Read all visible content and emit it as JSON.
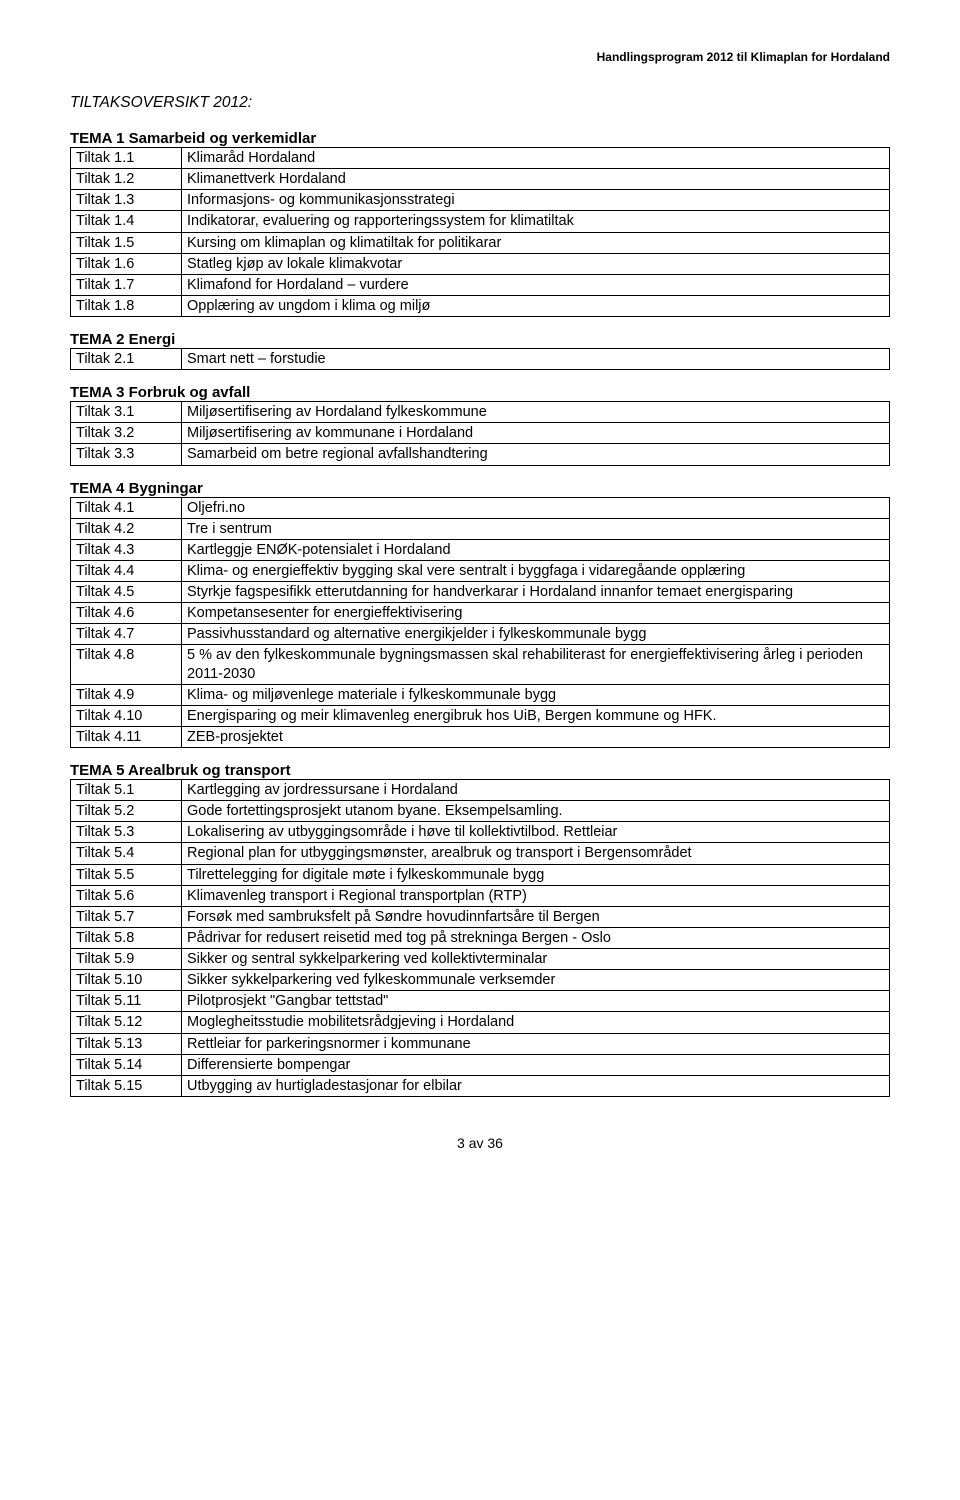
{
  "header": {
    "right_text": "Handlingsprogram 2012 til Klimaplan for Hordaland"
  },
  "page_title": "TILTAKSOVERSIKT 2012:",
  "sections": [
    {
      "title": "TEMA 1 Samarbeid og verkemidlar",
      "rows": [
        {
          "key": "Tiltak 1.1",
          "val": "Klimaråd Hordaland"
        },
        {
          "key": "Tiltak 1.2",
          "val": "Klimanettverk Hordaland"
        },
        {
          "key": "Tiltak 1.3",
          "val": "Informasjons- og kommunikasjonsstrategi"
        },
        {
          "key": "Tiltak 1.4",
          "val": "Indikatorar, evaluering og rapporteringssystem for klimatiltak"
        },
        {
          "key": "Tiltak 1.5",
          "val": "Kursing om klimaplan og klimatiltak for politikarar"
        },
        {
          "key": "Tiltak 1.6",
          "val": "Statleg kjøp av lokale klimakvotar"
        },
        {
          "key": "Tiltak 1.7",
          "val": "Klimafond for Hordaland – vurdere"
        },
        {
          "key": "Tiltak 1.8",
          "val": "Opplæring av ungdom i klima og miljø"
        }
      ]
    },
    {
      "title": "TEMA 2 Energi",
      "rows": [
        {
          "key": "Tiltak 2.1",
          "val": "Smart nett – forstudie"
        }
      ]
    },
    {
      "title": "TEMA 3 Forbruk og avfall",
      "rows": [
        {
          "key": "Tiltak 3.1",
          "val": "Miljøsertifisering av Hordaland fylkeskommune"
        },
        {
          "key": "Tiltak 3.2",
          "val": "Miljøsertifisering av kommunane i Hordaland"
        },
        {
          "key": "Tiltak 3.3",
          "val": "Samarbeid om betre regional avfallshandtering"
        }
      ]
    },
    {
      "title": "TEMA 4 Bygningar",
      "rows": [
        {
          "key": "Tiltak 4.1",
          "val": "Oljefri.no"
        },
        {
          "key": "Tiltak 4.2",
          "val": "Tre i sentrum"
        },
        {
          "key": "Tiltak 4.3",
          "val": "Kartleggje ENØK-potensialet i Hordaland"
        },
        {
          "key": "Tiltak 4.4",
          "val": "Klima- og energieffektiv bygging skal vere sentralt i byggfaga i vidaregåande opplæring"
        },
        {
          "key": "Tiltak 4.5",
          "val": "Styrkje fagspesifikk etterutdanning for handverkarar i Hordaland innanfor temaet energisparing"
        },
        {
          "key": "Tiltak 4.6",
          "val": "Kompetansesenter for energieffektivisering"
        },
        {
          "key": "Tiltak 4.7",
          "val": "Passivhusstandard og alternative energikjelder i fylkeskommunale bygg"
        },
        {
          "key": "Tiltak 4.8",
          "val": "5 % av den fylkeskommunale bygningsmassen skal rehabiliterast for energieffektivisering årleg i perioden 2011-2030"
        },
        {
          "key": "Tiltak 4.9",
          "val": "Klima- og miljøvenlege materiale i fylkeskommunale bygg"
        },
        {
          "key": "Tiltak 4.10",
          "val": "Energisparing og meir klimavenleg energibruk hos UiB, Bergen kommune og HFK."
        },
        {
          "key": "Tiltak 4.11",
          "val": "ZEB-prosjektet"
        }
      ]
    },
    {
      "title": "TEMA 5 Arealbruk og transport",
      "rows": [
        {
          "key": "Tiltak 5.1",
          "val": "Kartlegging av jordressursane i Hordaland"
        },
        {
          "key": "Tiltak 5.2",
          "val": "Gode fortettingsprosjekt utanom byane. Eksempelsamling."
        },
        {
          "key": "Tiltak 5.3",
          "val": "Lokalisering av utbyggingsområde i høve til kollektivtilbod. Rettleiar"
        },
        {
          "key": "Tiltak 5.4",
          "val": "Regional plan for utbyggingsmønster, arealbruk og transport i Bergensområdet"
        },
        {
          "key": "Tiltak 5.5",
          "val": "Tilrettelegging for digitale møte i fylkeskommunale bygg"
        },
        {
          "key": "Tiltak 5.6",
          "val": "Klimavenleg transport i Regional transportplan (RTP)"
        },
        {
          "key": "Tiltak 5.7",
          "val": "Forsøk med sambruksfelt på Søndre hovudinnfartsåre til Bergen"
        },
        {
          "key": "Tiltak 5.8",
          "val": "Pådrivar for redusert reisetid med tog på strekninga Bergen - Oslo"
        },
        {
          "key": "Tiltak 5.9",
          "val": "Sikker og sentral sykkelparkering ved kollektivterminalar"
        },
        {
          "key": "Tiltak 5.10",
          "val": "Sikker sykkelparkering ved fylkeskommunale verksemder"
        },
        {
          "key": "Tiltak 5.11",
          "val": "Pilotprosjekt \"Gangbar tettstad\""
        },
        {
          "key": "Tiltak 5.12",
          "val": "Moglegheitsstudie mobilitetsrådgjeving i Hordaland"
        },
        {
          "key": "Tiltak 5.13",
          "val": "Rettleiar for parkeringsnormer i kommunane"
        },
        {
          "key": "Tiltak 5.14",
          "val": "Differensierte bompengar"
        },
        {
          "key": "Tiltak 5.15",
          "val": "Utbygging av hurtigladestasjonar for elbilar"
        }
      ]
    }
  ],
  "footer": "3 av 36"
}
